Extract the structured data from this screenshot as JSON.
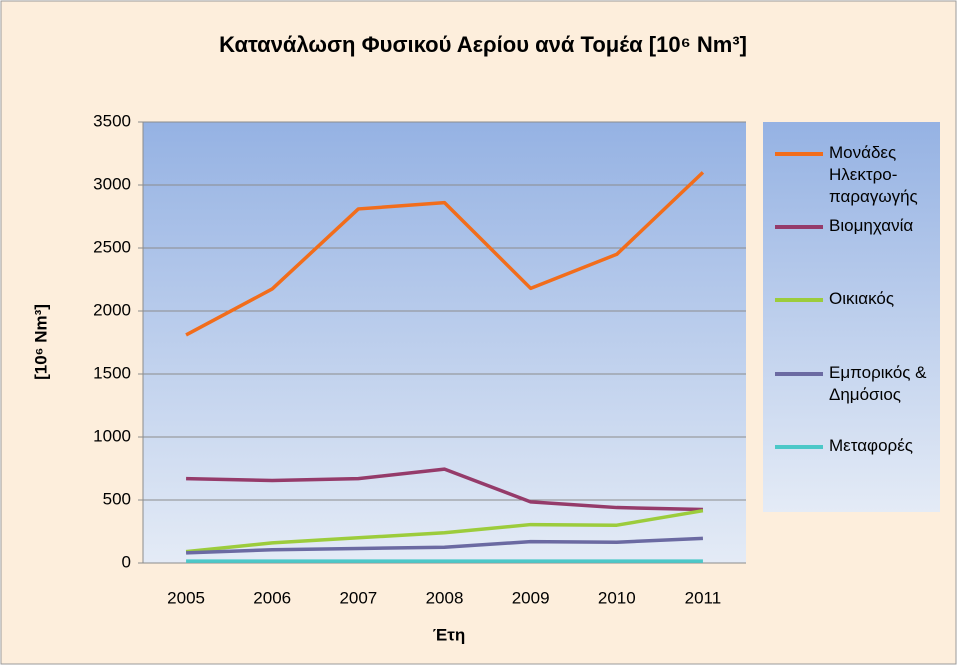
{
  "chart_data": {
    "type": "line",
    "title": "Κατανάλωση Φυσικού Αερίου ανά Τομέα [10⁶ Nm³]",
    "x_label": "Έτη",
    "y_label": "[10⁶ Nm³]",
    "categories": [
      "2005",
      "2006",
      "2007",
      "2008",
      "2009",
      "2010",
      "2011"
    ],
    "series": [
      {
        "name": "Μονάδες Ηλεκτρο-παραγωγής",
        "color": "#f26d1b",
        "values": [
          1810,
          2175,
          2810,
          2860,
          2180,
          2450,
          3100
        ]
      },
      {
        "name": "Βιομηχανία",
        "color": "#953b6a",
        "values": [
          670,
          655,
          670,
          745,
          485,
          440,
          425
        ]
      },
      {
        "name": "Οικιακός",
        "color": "#9ccc3c",
        "values": [
          90,
          160,
          200,
          240,
          305,
          300,
          415
        ]
      },
      {
        "name": "Εμπορικός & Δημόσιος",
        "color": "#6b6aa2",
        "values": [
          80,
          105,
          115,
          125,
          170,
          165,
          195
        ]
      },
      {
        "name": "Μεταφορές",
        "color": "#4cc8c8",
        "values": [
          15,
          15,
          15,
          15,
          15,
          15,
          15
        ]
      }
    ],
    "ylim": [
      0,
      3500
    ],
    "yticks": [
      0,
      500,
      1000,
      1500,
      2000,
      2500,
      3000,
      3500
    ],
    "grid": true,
    "legend": "right"
  }
}
